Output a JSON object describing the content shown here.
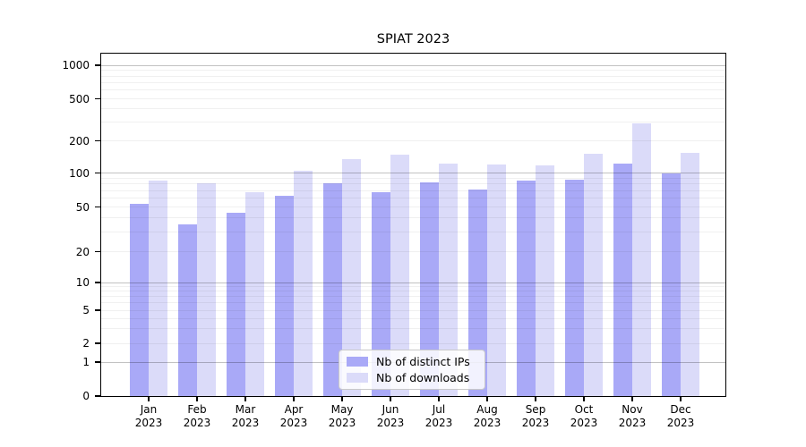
{
  "title": "SPIAT 2023",
  "colors": {
    "ips": "#a9a9f7",
    "downloads": "#dbdbf9",
    "axis": "#000000",
    "background": "#ffffff"
  },
  "legend": {
    "items": [
      {
        "label": "Nb of distinct IPs",
        "color": "#a9a9f7"
      },
      {
        "label": "Nb of downloads",
        "color": "#dbdbf9"
      }
    ]
  },
  "chart_data": {
    "type": "bar",
    "title": "SPIAT 2023",
    "categories": [
      "Jan 2023",
      "Feb 2023",
      "Mar 2023",
      "Apr 2023",
      "May 2023",
      "Jun 2023",
      "Jul 2023",
      "Aug 2023",
      "Sep 2023",
      "Oct 2023",
      "Nov 2023",
      "Dec 2023"
    ],
    "series": [
      {
        "name": "Nb of distinct IPs",
        "color_key": "ips",
        "values": [
          53,
          35,
          44,
          63,
          81,
          68,
          83,
          72,
          85,
          88,
          122,
          99
        ]
      },
      {
        "name": "Nb of downloads",
        "color_key": "downloads",
        "values": [
          85,
          81,
          68,
          104,
          135,
          148,
          122,
          120,
          118,
          150,
          293,
          155
        ]
      }
    ],
    "xlabel": "",
    "ylabel": "",
    "yscale": "symlog",
    "yticks": [
      0,
      1,
      2,
      5,
      10,
      20,
      50,
      100,
      200,
      500,
      1000
    ],
    "ylim": [
      0,
      1300
    ],
    "grid": "both-major-and-minor",
    "legend_position": "lower center"
  }
}
